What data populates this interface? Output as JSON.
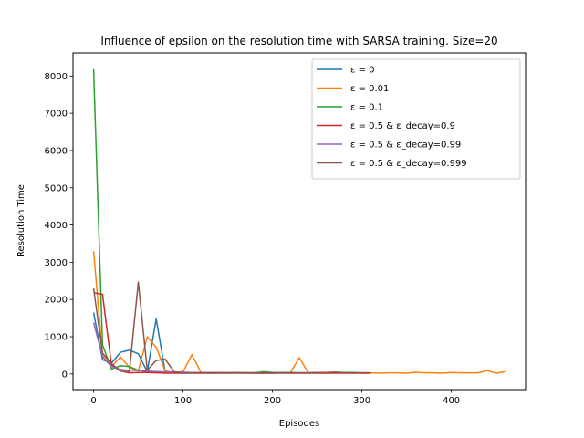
{
  "chart_data": {
    "type": "line",
    "title": "Influence of epsilon on the resolution time with SARSA training. Size=20",
    "xlabel": "Episodes",
    "ylabel": "Resolution Time",
    "xlim": [
      -23,
      483
    ],
    "ylim": [
      -420,
      8620
    ],
    "xticks": [
      0,
      100,
      200,
      300,
      400
    ],
    "yticks": [
      0,
      1000,
      2000,
      3000,
      4000,
      5000,
      6000,
      7000,
      8000
    ],
    "grid": false,
    "legend_position": "top-right",
    "series": [
      {
        "name": "ε = 0",
        "color": "#1f77b4",
        "x": [
          0,
          10,
          20,
          30,
          40,
          50,
          60,
          70,
          80,
          90,
          100,
          110,
          120,
          130,
          140,
          150,
          160,
          170,
          180,
          190,
          200,
          210,
          220
        ],
        "y": [
          1650,
          380,
          290,
          580,
          640,
          540,
          60,
          1480,
          60,
          30,
          40,
          30,
          30,
          20,
          30,
          30,
          30,
          30,
          20,
          20,
          20,
          30,
          20
        ]
      },
      {
        "name": "ε = 0.01",
        "color": "#ff7f0e",
        "x": [
          0,
          10,
          20,
          30,
          40,
          50,
          60,
          70,
          80,
          90,
          100,
          110,
          120,
          130,
          140,
          150,
          160,
          170,
          180,
          190,
          200,
          210,
          220,
          230,
          240,
          250,
          260,
          270,
          280,
          290,
          300,
          310,
          320,
          330,
          340,
          350,
          360,
          370,
          380,
          390,
          400,
          410,
          420,
          430,
          440,
          450,
          460
        ],
        "y": [
          3300,
          500,
          200,
          460,
          180,
          80,
          1000,
          720,
          80,
          40,
          60,
          520,
          40,
          40,
          40,
          30,
          30,
          30,
          30,
          20,
          30,
          30,
          30,
          440,
          30,
          30,
          40,
          50,
          30,
          30,
          30,
          30,
          20,
          30,
          30,
          20,
          50,
          30,
          30,
          20,
          40,
          30,
          30,
          30,
          90,
          20,
          60
        ]
      },
      {
        "name": "ε = 0.1",
        "color": "#2ca02c",
        "x": [
          0,
          10,
          20,
          30,
          40,
          50,
          60,
          70,
          80,
          90,
          100,
          110,
          120,
          130,
          140,
          150,
          160,
          170,
          180,
          190,
          200,
          210,
          220,
          230,
          240,
          250,
          260,
          270,
          280,
          290,
          300,
          310
        ],
        "y": [
          8180,
          780,
          130,
          220,
          200,
          100,
          60,
          60,
          50,
          40,
          40,
          30,
          40,
          30,
          30,
          30,
          40,
          30,
          30,
          60,
          40,
          40,
          40,
          30,
          30,
          40,
          40,
          50,
          40,
          40,
          30,
          30
        ]
      },
      {
        "name": "ε = 0.5 & ε_decay=0.9",
        "color": "#d62728",
        "x": [
          0,
          10,
          20,
          30,
          40,
          50,
          60,
          70,
          80,
          90,
          100,
          110,
          120,
          130,
          140,
          150,
          160,
          170,
          180,
          190,
          200,
          210,
          220,
          230,
          240,
          250,
          260,
          270,
          280,
          290,
          300,
          310
        ],
        "y": [
          2180,
          2140,
          240,
          80,
          30,
          40,
          40,
          30,
          20,
          20,
          20,
          20,
          20,
          20,
          20,
          20,
          20,
          20,
          20,
          20,
          20,
          20,
          20,
          20,
          20,
          20,
          20,
          20,
          20,
          20,
          20,
          20
        ]
      },
      {
        "name": "ε = 0.5 & ε_decay=0.99",
        "color": "#9467bd",
        "x": [
          0,
          10,
          20,
          30,
          40,
          50,
          60,
          70,
          80,
          90,
          100,
          110,
          120,
          130,
          140,
          150,
          160,
          170,
          180,
          190,
          200,
          210,
          220
        ],
        "y": [
          1380,
          460,
          200,
          120,
          100,
          90,
          80,
          60,
          60,
          50,
          50,
          40,
          40,
          40,
          40,
          30,
          30,
          30,
          30,
          30,
          30,
          30,
          30
        ]
      },
      {
        "name": "ε = 0.5 & ε_decay=0.999",
        "color": "#8c564b",
        "x": [
          0,
          10,
          20,
          30,
          40,
          50,
          60,
          70,
          80,
          90,
          100,
          110,
          120,
          130,
          140,
          150,
          160,
          170,
          180,
          190,
          200,
          210,
          220,
          230,
          240,
          250,
          260,
          270,
          280,
          290,
          300
        ],
        "y": [
          2300,
          560,
          280,
          80,
          60,
          2470,
          100,
          360,
          400,
          60,
          20,
          30,
          30,
          30,
          30,
          30,
          30,
          30,
          30,
          30,
          30,
          30,
          30,
          30,
          30,
          40,
          40,
          40,
          30,
          30,
          30
        ]
      }
    ]
  }
}
